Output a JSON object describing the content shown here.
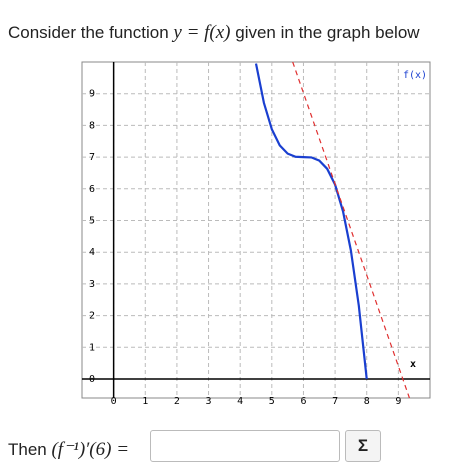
{
  "question": {
    "before": "Consider the function",
    "math": "y = f(x)",
    "after": "given in the graph below"
  },
  "chart_data": {
    "type": "line",
    "x_label": "x",
    "grid": true,
    "xlim": [
      -1,
      10
    ],
    "ylim": [
      -0.6,
      10
    ],
    "xticks": [
      0,
      1,
      2,
      3,
      4,
      5,
      6,
      7,
      8,
      9
    ],
    "yticks": [
      0,
      1,
      2,
      3,
      4,
      5,
      6,
      7,
      8,
      9
    ],
    "series": [
      {
        "name": "f(x)",
        "color": "#1a3fd0",
        "x": [
          4.5,
          4.75,
          5,
          5.25,
          5.5,
          5.75,
          6,
          6.25,
          6.5,
          6.75,
          7,
          7.25,
          7.5,
          7.75,
          8
        ],
        "values": [
          9.95,
          8.71,
          7.88,
          7.37,
          7.11,
          7.01,
          7,
          6.99,
          6.89,
          6.63,
          6.13,
          5.29,
          4.05,
          2.31,
          0
        ]
      },
      {
        "color": "#e03030",
        "dashed": true,
        "x": [
          5.66,
          9.35
        ],
        "values": [
          10,
          -0.6
        ]
      }
    ]
  },
  "answer": {
    "prompt": "Then",
    "math": "(f⁻¹)′(6) =",
    "button": "Σ"
  }
}
